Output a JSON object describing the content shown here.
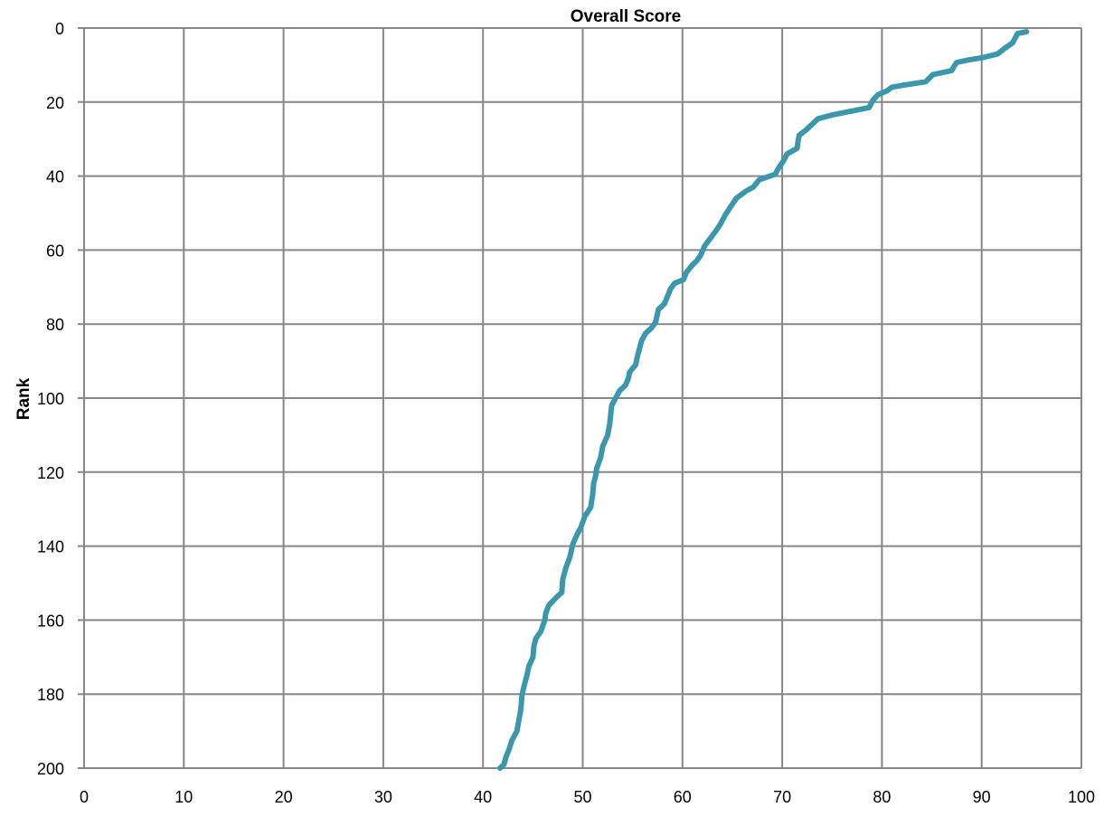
{
  "chart_data": {
    "type": "line",
    "title": "Overall Score",
    "xlabel": "",
    "ylabel": "Rank",
    "xlim": [
      0,
      100
    ],
    "ylim": [
      0,
      200
    ],
    "y_inverted": true,
    "grid": true,
    "x_ticks": [
      "0",
      "10",
      "20",
      "30",
      "40",
      "50",
      "60",
      "70",
      "80",
      "90",
      "100"
    ],
    "y_ticks": [
      "0",
      "20",
      "40",
      "60",
      "80",
      "100",
      "120",
      "140",
      "160",
      "180",
      "200"
    ],
    "series": [
      {
        "color": "#3b97ab",
        "points": [
          [
            94.5,
            1
          ],
          [
            93.6,
            1.5
          ],
          [
            93.1,
            4
          ],
          [
            92.3,
            5.5
          ],
          [
            91.6,
            7
          ],
          [
            90.1,
            8
          ],
          [
            88.7,
            8.6
          ],
          [
            87.5,
            9.3
          ],
          [
            87.2,
            10.5
          ],
          [
            87,
            11.5
          ],
          [
            85.1,
            12.6
          ],
          [
            84.4,
            14.5
          ],
          [
            82,
            15.5
          ],
          [
            81,
            16
          ],
          [
            80.5,
            17
          ],
          [
            79.6,
            18
          ],
          [
            79.1,
            19.5
          ],
          [
            78.7,
            21.5
          ],
          [
            75,
            23.5
          ],
          [
            73.6,
            24.5
          ],
          [
            73.2,
            25.5
          ],
          [
            72.4,
            27.5
          ],
          [
            71.7,
            29
          ],
          [
            71.6,
            30.5
          ],
          [
            71.5,
            32.5
          ],
          [
            70.5,
            34
          ],
          [
            70.1,
            36
          ],
          [
            69.6,
            38
          ],
          [
            69.3,
            39.5
          ],
          [
            67.7,
            41
          ],
          [
            67.1,
            43
          ],
          [
            66.4,
            44
          ],
          [
            65.4,
            46
          ],
          [
            64.9,
            48
          ],
          [
            64.3,
            50.5
          ],
          [
            63.8,
            53
          ],
          [
            63.3,
            55
          ],
          [
            62.6,
            57.5
          ],
          [
            62.2,
            59
          ],
          [
            61.8,
            61.5
          ],
          [
            61.4,
            63
          ],
          [
            61,
            64
          ],
          [
            60.4,
            66
          ],
          [
            60.1,
            68
          ],
          [
            59.2,
            69
          ],
          [
            58.8,
            70.5
          ],
          [
            58.5,
            72.5
          ],
          [
            58.2,
            74.5
          ],
          [
            57.6,
            76
          ],
          [
            57.3,
            79.5
          ],
          [
            56.9,
            81
          ],
          [
            56.3,
            82.5
          ],
          [
            55.9,
            84.5
          ],
          [
            55.5,
            88.5
          ],
          [
            55.3,
            91
          ],
          [
            54.7,
            93
          ],
          [
            54.6,
            94.5
          ],
          [
            54.3,
            96.5
          ],
          [
            53.7,
            98
          ],
          [
            53.4,
            99.5
          ],
          [
            52.9,
            102
          ],
          [
            52.7,
            107
          ],
          [
            52.5,
            110
          ],
          [
            52,
            113
          ],
          [
            51.8,
            116
          ],
          [
            51.4,
            119
          ],
          [
            51.3,
            121
          ],
          [
            51.1,
            123
          ],
          [
            51,
            126
          ],
          [
            50.8,
            129.5
          ],
          [
            50.2,
            132
          ],
          [
            49.8,
            135
          ],
          [
            49.4,
            137
          ],
          [
            49,
            139.5
          ],
          [
            48.7,
            143
          ],
          [
            48.3,
            146
          ],
          [
            48,
            149
          ],
          [
            47.9,
            152.5
          ],
          [
            47.3,
            154
          ],
          [
            46.6,
            156
          ],
          [
            46.3,
            158
          ],
          [
            46.2,
            160
          ],
          [
            45.8,
            163
          ],
          [
            45.3,
            165
          ],
          [
            45.1,
            167
          ],
          [
            45,
            170
          ],
          [
            44.6,
            172.5
          ],
          [
            44.4,
            175
          ],
          [
            44.1,
            178
          ],
          [
            43.9,
            180.5
          ],
          [
            43.8,
            184
          ],
          [
            43.6,
            187
          ],
          [
            43.4,
            190
          ],
          [
            42.9,
            192.5
          ],
          [
            42.6,
            195
          ],
          [
            42.3,
            197
          ],
          [
            42.1,
            199
          ],
          [
            41.7,
            200
          ]
        ]
      }
    ]
  }
}
